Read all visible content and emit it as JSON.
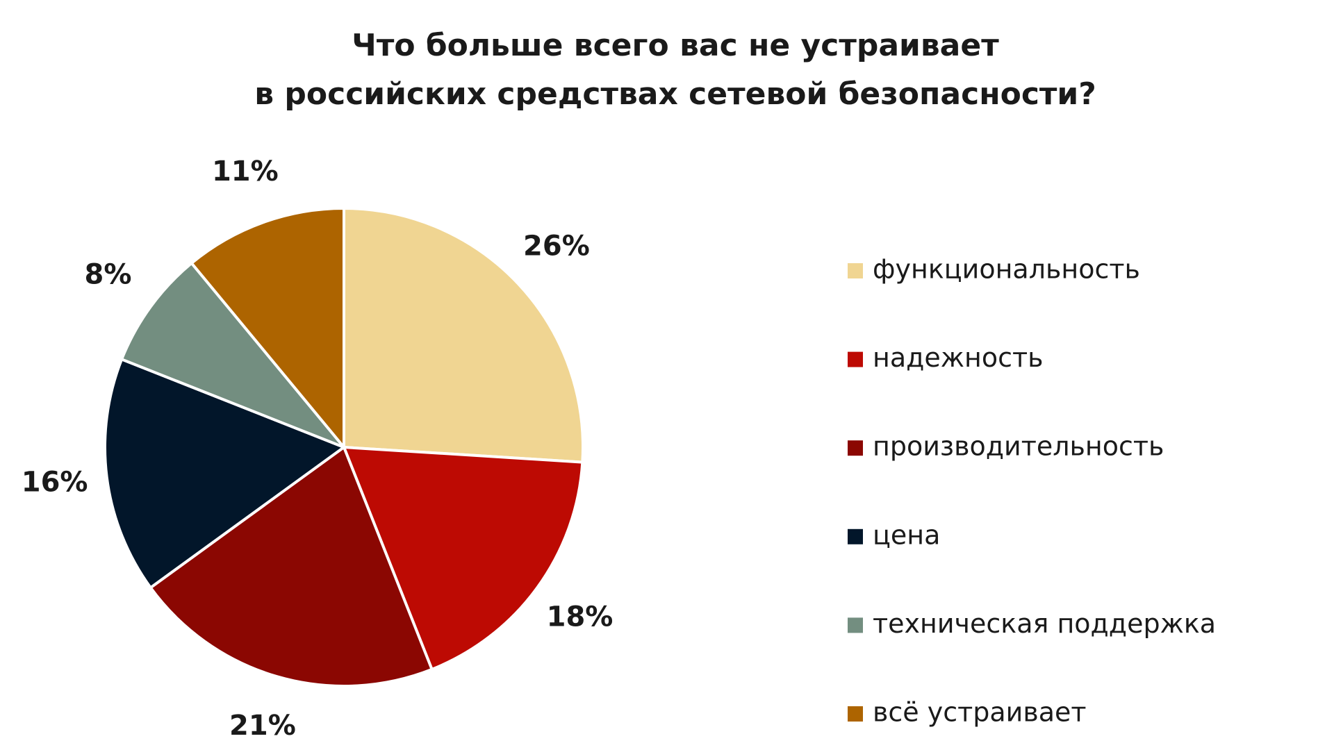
{
  "chart_data": {
    "type": "pie",
    "title": [
      "Что больше всего вас не устраивает",
      "в российских средствах сетевой безопасности?"
    ],
    "categories": [
      "функциональность",
      "надежность",
      "производительность",
      "цена",
      "техническая поддержка",
      "всё устраивает"
    ],
    "values": [
      26,
      18,
      21,
      16,
      8,
      11
    ],
    "value_labels": [
      "26%",
      "18%",
      "21%",
      "16%",
      "8%",
      "11%"
    ],
    "colors": [
      "#f0d592",
      "#bd0a03",
      "#8b0702",
      "#02162a",
      "#738e80",
      "#ad6400"
    ],
    "legend": "right"
  }
}
